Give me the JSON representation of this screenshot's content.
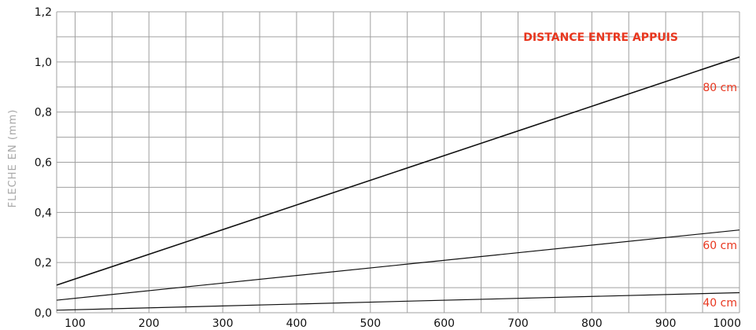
{
  "chart_data": {
    "type": "line",
    "title": "DISTANCE ENTRE APPUIS",
    "xlabel": "",
    "ylabel": "FLECHE EN (mm)",
    "xlim": [
      75,
      1000
    ],
    "ylim": [
      0,
      1.2
    ],
    "x_ticks": [
      100,
      200,
      300,
      400,
      500,
      600,
      700,
      800,
      900,
      1000
    ],
    "x_tick_labels": [
      "100",
      "200",
      "300",
      "400",
      "500",
      "600",
      "700",
      "800",
      "900",
      "1000"
    ],
    "y_ticks": [
      0,
      0.2,
      0.4,
      0.6,
      0.8,
      1.0,
      1.2
    ],
    "y_tick_labels": [
      "0,0",
      "0,2",
      "0,4",
      "0,6",
      "0,8",
      "1,0",
      "1,2"
    ],
    "grid": true,
    "series": [
      {
        "name": "80 cm",
        "x": [
          75,
          1000
        ],
        "y": [
          0.11,
          1.02
        ]
      },
      {
        "name": "60 cm",
        "x": [
          75,
          1000
        ],
        "y": [
          0.05,
          0.33
        ]
      },
      {
        "name": "40 cm",
        "x": [
          75,
          1000
        ],
        "y": [
          0.01,
          0.08
        ]
      }
    ]
  },
  "colors": {
    "title": "#e8361e",
    "series_label": "#e8361e",
    "line": "#111111",
    "grid": "#a0a0a0",
    "axis_label": "#a8a8a8",
    "tick_label": "#111111"
  }
}
